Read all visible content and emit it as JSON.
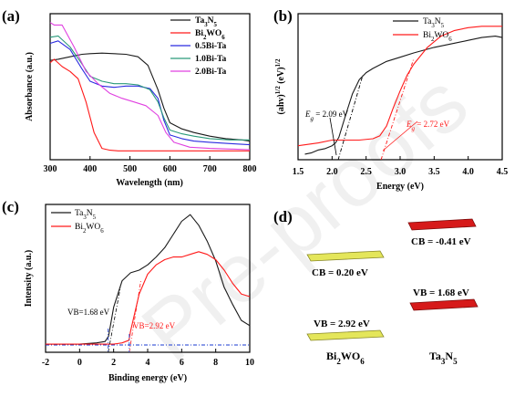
{
  "watermark": "Pre-proofs",
  "colors": {
    "ta3n5": "#1a1a1a",
    "bi2wo6": "#ff1a1a",
    "bi05": "#2a2ae0",
    "bi10": "#2a9a7a",
    "bi20": "#e040e0",
    "band_ta": "#d61a1a",
    "band_bi": "#e4e65a",
    "vline": "#1a3ad0"
  },
  "chart_data": [
    {
      "panel": "(a)",
      "type": "line",
      "xlabel": "Wavelength (nm)",
      "ylabel": "Absorbance (a.u.)",
      "xlim": [
        300,
        800
      ],
      "xticks": [
        "300",
        "400",
        "500",
        "600",
        "700",
        "800"
      ],
      "legend_position": "top-right",
      "series": [
        {
          "name": "Ta3N5",
          "x": [
            300,
            320,
            350,
            380,
            400,
            430,
            460,
            490,
            520,
            545,
            570,
            585,
            600,
            630,
            660,
            700,
            740,
            780,
            800
          ],
          "y": [
            0.79,
            0.8,
            0.82,
            0.84,
            0.845,
            0.85,
            0.845,
            0.84,
            0.82,
            0.75,
            0.55,
            0.4,
            0.28,
            0.23,
            0.2,
            0.17,
            0.15,
            0.14,
            0.13
          ]
        },
        {
          "name": "Bi2WO6",
          "x": [
            300,
            310,
            330,
            350,
            370,
            390,
            410,
            430,
            450,
            470,
            500,
            550,
            600,
            700,
            800
          ],
          "y": [
            0.77,
            0.8,
            0.74,
            0.7,
            0.64,
            0.45,
            0.2,
            0.07,
            0.055,
            0.05,
            0.05,
            0.05,
            0.05,
            0.05,
            0.05
          ]
        },
        {
          "name": "0.5Bi-Ta",
          "x": [
            300,
            320,
            350,
            380,
            400,
            430,
            460,
            490,
            520,
            550,
            570,
            585,
            600,
            630,
            660,
            700,
            750,
            800
          ],
          "y": [
            0.93,
            0.95,
            0.88,
            0.72,
            0.62,
            0.58,
            0.57,
            0.58,
            0.58,
            0.56,
            0.48,
            0.3,
            0.18,
            0.15,
            0.13,
            0.12,
            0.11,
            0.1
          ]
        },
        {
          "name": "1.0Bi-Ta",
          "x": [
            300,
            320,
            350,
            380,
            400,
            430,
            460,
            490,
            520,
            550,
            570,
            585,
            600,
            630,
            660,
            700,
            750,
            800
          ],
          "y": [
            0.98,
            0.99,
            0.9,
            0.76,
            0.66,
            0.62,
            0.6,
            0.6,
            0.59,
            0.55,
            0.45,
            0.32,
            0.22,
            0.19,
            0.17,
            0.15,
            0.14,
            0.14
          ]
        },
        {
          "name": "2.0Bi-Ta",
          "x": [
            300,
            310,
            330,
            360,
            390,
            420,
            450,
            480,
            510,
            540,
            570,
            590,
            610,
            650,
            700,
            750,
            800
          ],
          "y": [
            1.1,
            1.08,
            1.08,
            0.9,
            0.7,
            0.6,
            0.52,
            0.48,
            0.45,
            0.42,
            0.34,
            0.2,
            0.12,
            0.08,
            0.07,
            0.065,
            0.06
          ]
        }
      ]
    },
    {
      "panel": "(b)",
      "type": "line",
      "xlabel": "Energy (eV)",
      "ylabel": "(ahv)1/2 (eV)1/2",
      "xlim": [
        1.5,
        4.5
      ],
      "xticks": [
        "1.5",
        "2.0",
        "2.5",
        "3.0",
        "3.5",
        "4.0",
        "4.5"
      ],
      "legend_position": "top-left",
      "series": [
        {
          "name": "Ta3N5",
          "x": [
            1.6,
            1.7,
            1.8,
            1.9,
            2.0,
            2.05,
            2.1,
            2.2,
            2.3,
            2.4,
            2.5,
            2.6,
            2.8,
            3.0,
            3.2,
            3.5,
            3.8,
            4.0,
            4.2,
            4.4,
            4.5
          ],
          "y": [
            0.02,
            0.03,
            0.05,
            0.06,
            0.08,
            0.1,
            0.14,
            0.3,
            0.45,
            0.55,
            0.6,
            0.63,
            0.68,
            0.71,
            0.74,
            0.78,
            0.81,
            0.83,
            0.85,
            0.86,
            0.85
          ]
        },
        {
          "name": "Bi2WO6",
          "x": [
            1.5,
            1.8,
            2.0,
            2.2,
            2.4,
            2.6,
            2.7,
            2.8,
            2.9,
            3.0,
            3.1,
            3.2,
            3.4,
            3.6,
            3.8,
            4.0,
            4.2,
            4.4,
            4.5
          ],
          "y": [
            0.08,
            0.1,
            0.12,
            0.12,
            0.12,
            0.13,
            0.15,
            0.22,
            0.35,
            0.47,
            0.58,
            0.66,
            0.78,
            0.86,
            0.9,
            0.92,
            0.93,
            0.93,
            0.93
          ]
        }
      ],
      "annotations": [
        {
          "text": "Eg = 2.09 eV",
          "x": 2.09
        },
        {
          "text": "Eg = 2.72 eV",
          "x": 2.72
        }
      ]
    },
    {
      "panel": "(c)",
      "type": "line",
      "xlabel": "Binding energy (eV)",
      "ylabel": "Intensity (a.u.)",
      "xlim": [
        -2,
        10
      ],
      "xticks": [
        "-2",
        "0",
        "2",
        "4",
        "6",
        "8",
        "10"
      ],
      "legend_position": "top-left",
      "series": [
        {
          "name": "Ta3N5",
          "x": [
            -2,
            -1,
            0,
            1,
            1.5,
            1.7,
            2,
            2.5,
            3,
            3.5,
            4,
            4.5,
            5,
            5.5,
            6,
            6.5,
            7,
            7.5,
            8,
            8.5,
            9,
            9.5,
            10
          ],
          "y": [
            0.02,
            0.02,
            0.02,
            0.03,
            0.04,
            0.08,
            0.3,
            0.5,
            0.56,
            0.58,
            0.62,
            0.68,
            0.75,
            0.85,
            0.95,
            1.0,
            0.92,
            0.8,
            0.65,
            0.45,
            0.32,
            0.2,
            0.16
          ]
        },
        {
          "name": "Bi2WO6",
          "x": [
            -2,
            -1,
            0,
            1,
            2,
            2.5,
            2.9,
            3,
            3.5,
            4,
            4.5,
            5,
            5.5,
            6,
            6.5,
            7,
            7.5,
            8,
            8.5,
            9,
            9.5,
            10
          ],
          "y": [
            0.02,
            0.02,
            0.02,
            0.02,
            0.02,
            0.03,
            0.05,
            0.12,
            0.4,
            0.55,
            0.62,
            0.66,
            0.68,
            0.68,
            0.7,
            0.72,
            0.7,
            0.66,
            0.58,
            0.48,
            0.4,
            0.38
          ]
        }
      ],
      "annotations": [
        {
          "text": "VB=1.68 eV",
          "x": 1.68
        },
        {
          "text": "VB=2.92 eV",
          "x": 2.92
        }
      ]
    },
    {
      "panel": "(d)",
      "type": "band_diagram",
      "materials": [
        {
          "name": "Bi2WO6",
          "cb": "CB = 0.20 eV",
          "vb": "VB = 2.92 eV"
        },
        {
          "name": "Ta3N5",
          "cb": "CB = -0.41 eV",
          "vb": "VB = 1.68 eV"
        }
      ]
    }
  ]
}
